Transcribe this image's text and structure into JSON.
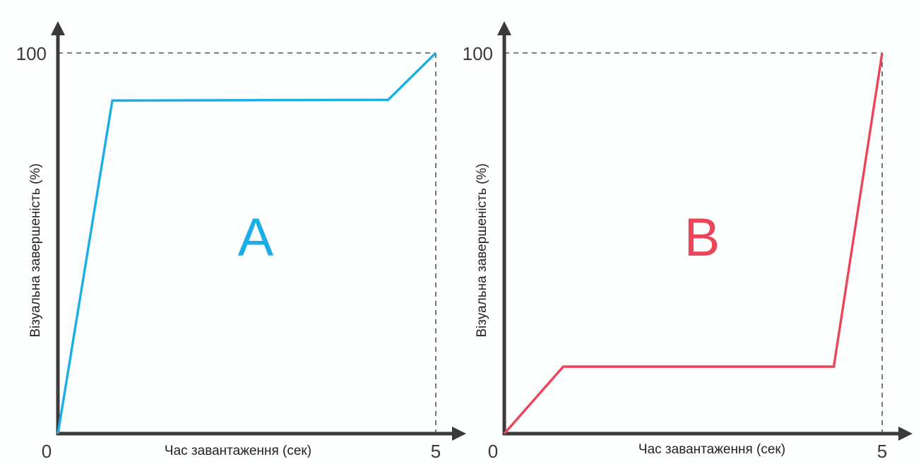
{
  "colors": {
    "axis": "#3a3a3a",
    "guide": "#555555",
    "series_a": "#1aaee6",
    "series_b": "#ec4559",
    "background": "#fdfefe"
  },
  "chart_data": [
    {
      "type": "line",
      "panel_label": "A",
      "xlabel": "Час завантаження (сек)",
      "ylabel": "Візуальна завершеність (%)",
      "xlim": [
        0,
        5
      ],
      "ylim": [
        0,
        100
      ],
      "x_ticks": [
        "0",
        "5"
      ],
      "y_ticks": [
        "100"
      ],
      "grid": false,
      "series": [
        {
          "color": "#1aaee6",
          "x": [
            0,
            0.72,
            4.37,
            5.0
          ],
          "y": [
            0,
            87.5,
            87.7,
            100
          ]
        }
      ]
    },
    {
      "type": "line",
      "panel_label": "B",
      "xlabel": "Час завантаження (сек)",
      "ylabel": "Візуальна завершеність (%)",
      "xlim": [
        0,
        5
      ],
      "ylim": [
        0,
        100
      ],
      "x_ticks": [
        "0",
        "5"
      ],
      "y_ticks": [
        "100"
      ],
      "grid": false,
      "series": [
        {
          "color": "#ec4559",
          "x": [
            0,
            0.78,
            4.36,
            5.0
          ],
          "y": [
            0,
            17.6,
            17.6,
            100
          ]
        }
      ]
    }
  ]
}
